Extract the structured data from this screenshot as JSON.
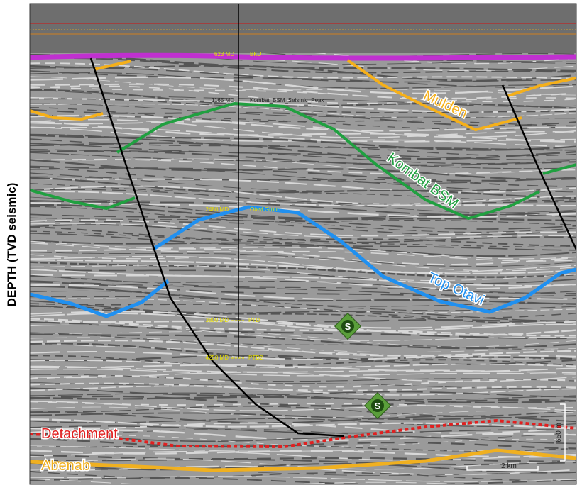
{
  "axis_label": "DEPTH (TVD seismic)",
  "horizons": [
    {
      "label": "Mulden"
    },
    {
      "label": "Kombat BSM"
    },
    {
      "label": "Top Otavi"
    },
    {
      "label": "Detachment"
    },
    {
      "label": "Abenab"
    }
  ],
  "well": {
    "markers": [
      {
        "depth": "623 MD",
        "name": "BKU"
      },
      {
        "depth": "1165 MD",
        "name": "Kombat_BSM_Seismic_Peak"
      },
      {
        "depth": "2480 MD",
        "name": "Otavi Group"
      },
      {
        "depth": "3800 MD",
        "name": "PTD"
      },
      {
        "depth": "4250 MD",
        "name": "PTD2"
      }
    ]
  },
  "symbols": [
    "S",
    "S"
  ],
  "scale": {
    "vertical": "650 m",
    "horizontal": "2 km"
  }
}
